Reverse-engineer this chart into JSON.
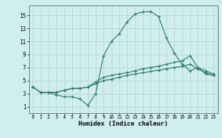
{
  "xlabel": "Humidex (Indice chaleur)",
  "background_color": "#d0eef0",
  "grid_color": "#b8d8d0",
  "line_color": "#2e7d6e",
  "xlim": [
    -0.5,
    23.5
  ],
  "ylim": [
    0,
    16.5
  ],
  "xticks": [
    0,
    1,
    2,
    3,
    4,
    5,
    6,
    7,
    8,
    9,
    10,
    11,
    12,
    13,
    14,
    15,
    16,
    17,
    18,
    19,
    20,
    21,
    22,
    23
  ],
  "yticks": [
    1,
    3,
    5,
    7,
    9,
    11,
    13,
    15
  ],
  "series": [
    {
      "x": [
        0,
        1,
        2,
        3,
        4,
        5,
        6,
        7,
        8,
        9,
        10,
        11,
        12,
        13,
        14,
        15,
        16,
        17,
        18,
        19,
        20,
        21,
        22,
        23
      ],
      "y": [
        4,
        3.2,
        3.2,
        2.8,
        2.5,
        2.5,
        2.2,
        1.2,
        3.0,
        8.8,
        11.0,
        12.2,
        14.0,
        15.2,
        15.5,
        15.6,
        14.8,
        11.5,
        9.2,
        7.5,
        6.5,
        7.0,
        6.0,
        5.8
      ]
    },
    {
      "x": [
        0,
        1,
        2,
        3,
        4,
        5,
        6,
        7,
        8,
        9,
        10,
        11,
        12,
        13,
        14,
        15,
        16,
        17,
        18,
        19,
        20,
        21,
        22,
        23
      ],
      "y": [
        4,
        3.2,
        3.2,
        3.2,
        3.5,
        3.8,
        3.8,
        4.0,
        4.5,
        5.0,
        5.2,
        5.5,
        5.8,
        6.0,
        6.2,
        6.4,
        6.6,
        6.8,
        7.0,
        7.2,
        7.5,
        6.8,
        6.2,
        5.8
      ]
    },
    {
      "x": [
        0,
        1,
        2,
        3,
        4,
        5,
        6,
        7,
        8,
        9,
        10,
        11,
        12,
        13,
        14,
        15,
        16,
        17,
        18,
        19,
        20,
        21,
        22,
        23
      ],
      "y": [
        4,
        3.2,
        3.2,
        3.2,
        3.5,
        3.8,
        3.8,
        4.0,
        4.8,
        5.5,
        5.8,
        6.0,
        6.2,
        6.5,
        6.8,
        7.0,
        7.2,
        7.5,
        7.8,
        8.0,
        8.8,
        7.0,
        6.5,
        6.0
      ]
    }
  ]
}
